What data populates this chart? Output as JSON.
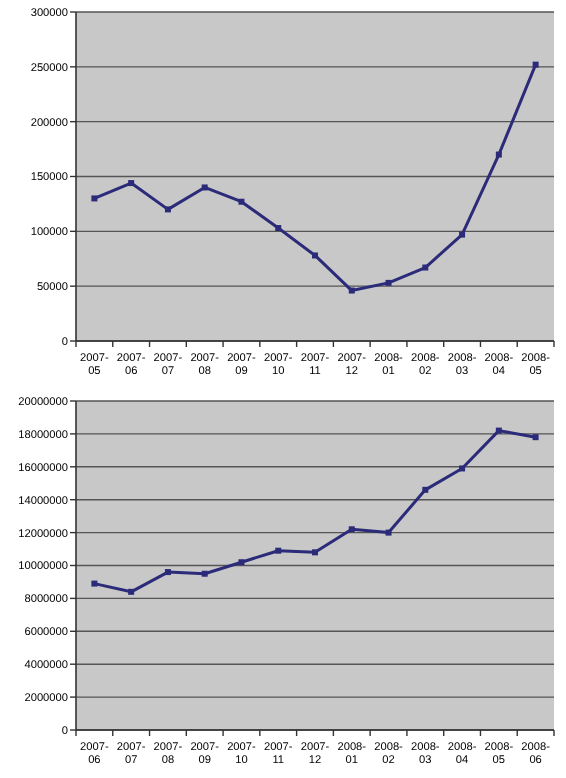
{
  "chart_data": [
    {
      "type": "line",
      "categories": [
        "2007-05",
        "2007-06",
        "2007-07",
        "2007-08",
        "2007-09",
        "2007-10",
        "2007-11",
        "2007-12",
        "2008-01",
        "2008-02",
        "2008-03",
        "2008-04",
        "2008-05"
      ],
      "series": [
        {
          "color": "#2b2b7a",
          "values": [
            130000,
            144000,
            120000,
            140000,
            127000,
            103000,
            78000,
            46000,
            53000,
            67000,
            97000,
            170000,
            252000
          ]
        }
      ],
      "ylim": [
        0,
        300000
      ],
      "yticks": [
        0,
        50000,
        100000,
        150000,
        200000,
        250000,
        300000
      ],
      "grid": "y",
      "marker": "square",
      "line_style": "solid"
    },
    {
      "type": "line",
      "categories": [
        "2007-06",
        "2007-07",
        "2007-08",
        "2007-09",
        "2007-10",
        "2007-11",
        "2007-12",
        "2008-01",
        "2008-02",
        "2008-03",
        "2008-04",
        "2008-05",
        "2008-06"
      ],
      "series": [
        {
          "color": "#2b2b7a",
          "values": [
            8900000,
            8400000,
            9600000,
            9500000,
            10200000,
            10900000,
            10800000,
            12200000,
            12000000,
            14600000,
            15900000,
            18200000,
            17800000
          ]
        }
      ],
      "ylim": [
        0,
        20000000
      ],
      "yticks": [
        0,
        2000000,
        4000000,
        6000000,
        8000000,
        10000000,
        12000000,
        14000000,
        16000000,
        18000000,
        20000000
      ],
      "grid": "y",
      "marker": "square",
      "line_style": "solid"
    }
  ]
}
